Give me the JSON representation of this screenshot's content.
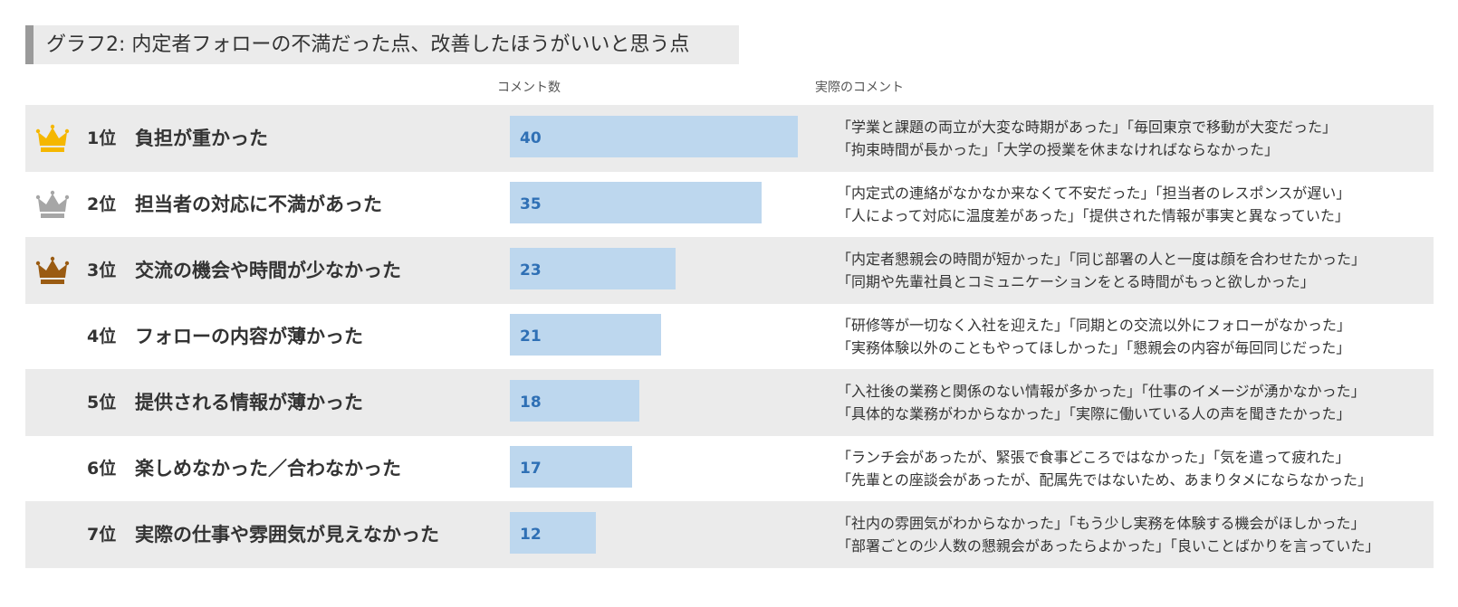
{
  "title": "グラフ2: 内定者フォローの不満だった点、改善したほうがいいと思う点",
  "headers": {
    "count": "コメント数",
    "comments": "実際のコメント"
  },
  "colors": {
    "bar": "#bdd7ee",
    "bar_label": "#2f70b5",
    "gold": "#f5b700",
    "silver": "#a6a6a6",
    "bronze": "#9a5b12",
    "row_shade": "#ebebeb"
  },
  "rows": [
    {
      "rank": "1位",
      "reason": "負担が重かった",
      "comment1": "「学業と課題の両立が大変な時期があった」「毎回東京で移動が大変だった」",
      "comment2": "「拘束時間が長かった」「大学の授業を休まなければならなかった」",
      "crown": "gold-crown-icon"
    },
    {
      "rank": "2位",
      "reason": "担当者の対応に不満があった",
      "comment1": "「内定式の連絡がなかなか来なくて不安だった」「担当者のレスポンスが遅い」",
      "comment2": "「人によって対応に温度差があった」「提供された情報が事実と異なっていた」",
      "crown": "silver-crown-icon"
    },
    {
      "rank": "3位",
      "reason": "交流の機会や時間が少なかった",
      "comment1": "「内定者懇親会の時間が短かった」「同じ部署の人と一度は顔を合わせたかった」",
      "comment2": "「同期や先輩社員とコミュニケーションをとる時間がもっと欲しかった」",
      "crown": "bronze-crown-icon"
    },
    {
      "rank": "4位",
      "reason": "フォローの内容が薄かった",
      "comment1": "「研修等が一切なく入社を迎えた」「同期との交流以外にフォローがなかった」",
      "comment2": "「実務体験以外のこともやってほしかった」「懇親会の内容が毎回同じだった」"
    },
    {
      "rank": "5位",
      "reason": "提供される情報が薄かった",
      "comment1": "「入社後の業務と関係のない情報が多かった」「仕事のイメージが湧かなかった」",
      "comment2": "「具体的な業務がわからなかった」「実際に働いている人の声を聞きたかった」"
    },
    {
      "rank": "6位",
      "reason": "楽しめなかった／合わなかった",
      "comment1": "「ランチ会があったが、緊張で食事どころではなかった」「気を遣って疲れた」",
      "comment2": "「先輩との座談会があったが、配属先ではないため、あまりタメにならなかった」"
    },
    {
      "rank": "7位",
      "reason": "実際の仕事や雰囲気が見えなかった",
      "comment1": "「社内の雰囲気がわからなかった」「もう少し実務を体験する機会がほしかった」",
      "comment2": "「部署ごとの少人数の懇親会があったらよかった」「良いことばかりを言っていた」"
    }
  ],
  "chart_data": {
    "type": "bar",
    "orientation": "horizontal",
    "title": "グラフ2: 内定者フォローの不満だった点、改善したほうがいいと思う点",
    "categories": [
      "負担が重かった",
      "担当者の対応に不満があった",
      "交流の機会や時間が少なかった",
      "フォローの内容が薄かった",
      "提供される情報が薄かった",
      "楽しめなかった／合わなかった",
      "実際の仕事や雰囲気が見えなかった"
    ],
    "values": [
      40,
      35,
      23,
      21,
      18,
      17,
      12
    ],
    "value_header": "コメント数"
  }
}
